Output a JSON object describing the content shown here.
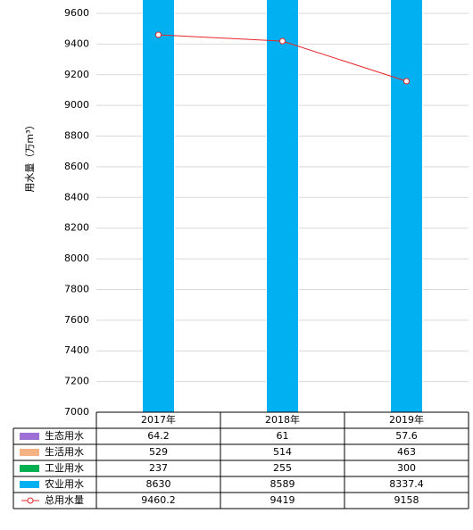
{
  "chart_data": {
    "type": "bar",
    "y_label": "用水量（万m³）",
    "categories": [
      "2017年",
      "2018年",
      "2019年"
    ],
    "series": [
      {
        "name": "生态用水",
        "type": "bar",
        "color": "#9e70d6",
        "values": [
          64.2,
          61,
          57.6
        ]
      },
      {
        "name": "生活用水",
        "type": "bar",
        "color": "#f4b183",
        "values": [
          529,
          514,
          463
        ]
      },
      {
        "name": "工业用水",
        "type": "bar",
        "color": "#00b050",
        "values": [
          237,
          255,
          300
        ]
      },
      {
        "name": "农业用水",
        "type": "bar",
        "color": "#00b0f0",
        "values": [
          8630,
          8589,
          8337.4
        ]
      },
      {
        "name": "总用水量",
        "type": "line",
        "color": "#e8262a",
        "values": [
          9460.2,
          9419,
          9158
        ]
      }
    ],
    "ylim": [
      7000,
      9600
    ],
    "yticks": [
      7000,
      7200,
      7400,
      7600,
      7800,
      8000,
      8200,
      8400,
      8600,
      8800,
      9000,
      9200,
      9400,
      9600
    ],
    "grid": true
  }
}
